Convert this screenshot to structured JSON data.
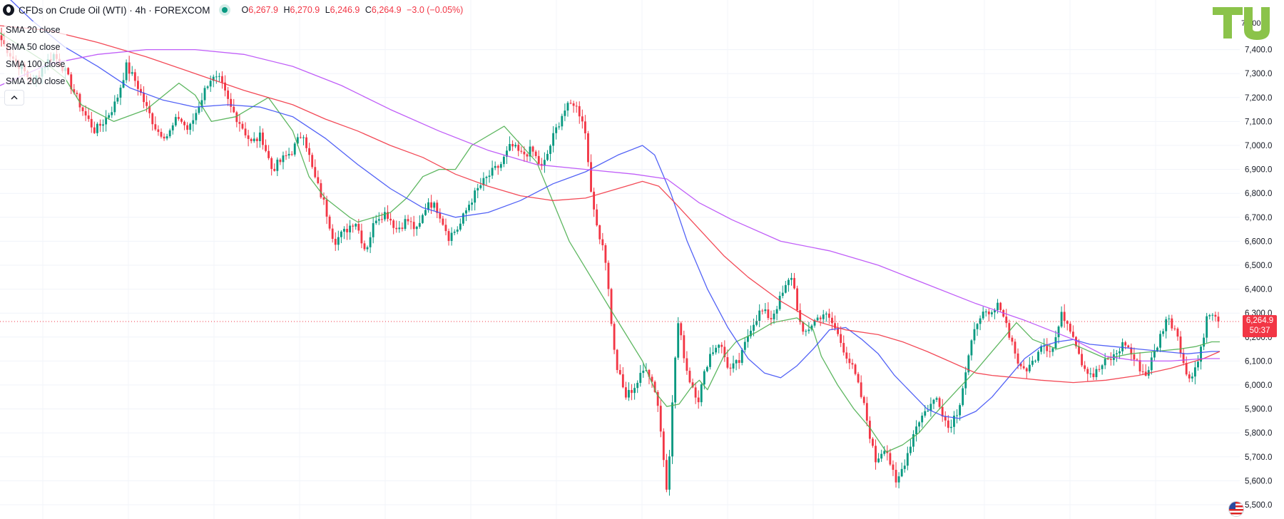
{
  "header": {
    "symbol_title": "CFDs on Crude Oil (WTI) · 4h · FOREXCOM",
    "ohlc": {
      "o_label": "O",
      "o": "6,267.9",
      "h_label": "H",
      "h": "6,270.9",
      "l_label": "L",
      "l": "6,246.9",
      "c_label": "C",
      "c": "6,264.9",
      "change": "−3.0 (−0.05%)"
    }
  },
  "indicators": [
    {
      "label": "SMA 20 close",
      "color": "#4caf50"
    },
    {
      "label": "SMA 50 close",
      "color": "#3f51f5"
    },
    {
      "label": "SMA 100 close",
      "color": "#f23645"
    },
    {
      "label": "SMA 200 close",
      "color": "#b94cf7"
    }
  ],
  "collapse_icon": "chevron-up-icon",
  "logo": {
    "text": "TU",
    "color": "#8bc34a"
  },
  "price_label": {
    "price": "6,264.9",
    "countdown": "50:37",
    "color": "#f23645"
  },
  "top_tick_partial": "7,500",
  "flag_icon": "us-flag-icon",
  "chart_data": {
    "type": "candlestick",
    "ylim": [
      5500,
      7500
    ],
    "yticks": [
      "7,400.0",
      "7,300.0",
      "7,200.0",
      "7,100.0",
      "7,000.0",
      "6,900.0",
      "6,800.0",
      "6,700.0",
      "6,600.0",
      "6,500.0",
      "6,400.0",
      "6,300.0",
      "6,200.0",
      "6,100.0",
      "6,000.0",
      "5,900.0",
      "5,800.0",
      "5,700.0",
      "5,600.0",
      "5,500.0"
    ],
    "ytick_values": [
      7400,
      7300,
      7200,
      7100,
      7000,
      6900,
      6800,
      6700,
      6600,
      6500,
      6400,
      6300,
      6200,
      6100,
      6000,
      5900,
      5800,
      5700,
      5600,
      5500
    ],
    "current_price": 6264.9,
    "colors": {
      "up": "#089981",
      "down": "#f23645"
    },
    "price_path": [
      7440,
      7370,
      7320,
      7260,
      7330,
      7380,
      7320,
      7220,
      7130,
      7060,
      7110,
      7180,
      7330,
      7260,
      7150,
      7060,
      7040,
      7120,
      7060,
      7170,
      7280,
      7270,
      7160,
      7090,
      7010,
      7040,
      6900,
      6940,
      6980,
      7060,
      6880,
      6760,
      6600,
      6640,
      6690,
      6560,
      6700,
      6720,
      6650,
      6690,
      6640,
      6770,
      6730,
      6620,
      6660,
      6760,
      6830,
      6880,
      6920,
      7000,
      6960,
      6980,
      6900,
      7030,
      7140,
      7180,
      7100,
      6700,
      6560,
      6100,
      5950,
      6000,
      6080,
      5960,
      5560,
      6270,
      6040,
      5940,
      6120,
      6180,
      6060,
      6100,
      6240,
      6310,
      6280,
      6370,
      6460,
      6200,
      6260,
      6300,
      6250,
      6150,
      6050,
      5900,
      5680,
      5750,
      5580,
      5700,
      5840,
      5900,
      5950,
      5820,
      5900,
      6120,
      6300,
      6280,
      6340,
      6200,
      6060,
      6080,
      6180,
      6140,
      6300,
      6220,
      6080,
      6040,
      6090,
      6120,
      6180,
      6100,
      6040,
      6150,
      6280,
      6230,
      6020,
      6090,
      6300,
      6265
    ],
    "sma_series": [
      {
        "name": "SMA 20 close",
        "color": "#4caf50",
        "x": [
          0,
          50,
          80,
          100,
          140,
          180,
          220,
          240,
          260,
          290,
          330,
          360,
          380,
          400,
          430,
          440,
          460,
          480,
          500,
          520,
          540,
          560,
          580,
          620,
          660,
          700,
          750,
          790,
          808,
          820,
          835,
          850,
          860,
          870,
          880,
          890,
          905,
          930,
          950,
          980,
          1000,
          1010,
          1030,
          1050,
          1070,
          1090,
          1110,
          1130,
          1150,
          1180,
          1200,
          1225,
          1250,
          1270,
          1300,
          1320,
          1340,
          1360,
          1390,
          1420,
          1450,
          1470,
          1490,
          1500
        ],
        "y": [
          7470,
          7360,
          7280,
          7170,
          7100,
          7150,
          7260,
          7210,
          7100,
          7120,
          7200,
          7060,
          6870,
          6780,
          6700,
          6680,
          6700,
          6720,
          6780,
          6870,
          6900,
          6900,
          7000,
          7080,
          6930,
          6600,
          6320,
          6100,
          5960,
          5910,
          5920,
          5990,
          6020,
          5980,
          6050,
          6120,
          6180,
          6220,
          6260,
          6280,
          6230,
          6120,
          6000,
          5900,
          5820,
          5720,
          5750,
          5800,
          5880,
          5990,
          6060,
          6160,
          6260,
          6190,
          6150,
          6170,
          6140,
          6110,
          6130,
          6140,
          6150,
          6160,
          6180,
          6180
        ]
      },
      {
        "name": "SMA 50 close",
        "color": "#3f51f5",
        "x": [
          0,
          40,
          80,
          120,
          160,
          200,
          240,
          280,
          320,
          360,
          400,
          440,
          480,
          520,
          560,
          600,
          640,
          680,
          720,
          760,
          790,
          805,
          825,
          845,
          870,
          895,
          920,
          940,
          960,
          980,
          1000,
          1020,
          1040,
          1060,
          1080,
          1100,
          1120,
          1140,
          1160,
          1180,
          1200,
          1220,
          1240,
          1260,
          1280,
          1300,
          1320,
          1340,
          1370,
          1400,
          1430,
          1460,
          1490,
          1500
        ],
        "y": [
          7650,
          7520,
          7410,
          7330,
          7240,
          7190,
          7160,
          7170,
          7160,
          7120,
          7030,
          6920,
          6820,
          6740,
          6700,
          6720,
          6770,
          6840,
          6890,
          6960,
          7000,
          6960,
          6800,
          6600,
          6400,
          6240,
          6110,
          6050,
          6030,
          6080,
          6150,
          6230,
          6240,
          6190,
          6130,
          6040,
          5970,
          5900,
          5870,
          5860,
          5890,
          5950,
          6030,
          6110,
          6160,
          6180,
          6190,
          6170,
          6160,
          6150,
          6140,
          6130,
          6140,
          6140
        ]
      },
      {
        "name": "SMA 100 close",
        "color": "#f23645",
        "x": [
          0,
          60,
          120,
          180,
          240,
          300,
          360,
          400,
          440,
          480,
          520,
          560,
          600,
          640,
          680,
          720,
          760,
          790,
          810,
          830,
          860,
          890,
          920,
          960,
          1000,
          1040,
          1080,
          1110,
          1140,
          1160,
          1180,
          1200,
          1220,
          1250,
          1280,
          1320,
          1360,
          1400,
          1440,
          1480,
          1500
        ],
        "y": [
          7500,
          7480,
          7430,
          7370,
          7300,
          7230,
          7170,
          7110,
          7060,
          7000,
          6950,
          6880,
          6830,
          6790,
          6770,
          6780,
          6820,
          6850,
          6830,
          6760,
          6650,
          6540,
          6450,
          6350,
          6270,
          6230,
          6210,
          6180,
          6140,
          6110,
          6080,
          6050,
          6040,
          6030,
          6020,
          6010,
          6020,
          6040,
          6070,
          6110,
          6140
        ]
      },
      {
        "name": "SMA 200 close",
        "color": "#b94cf7",
        "x": [
          0,
          60,
          120,
          180,
          240,
          300,
          360,
          420,
          480,
          540,
          600,
          660,
          720,
          780,
          820,
          860,
          900,
          960,
          1020,
          1080,
          1140,
          1200,
          1260,
          1320,
          1360,
          1400,
          1440,
          1480,
          1500
        ],
        "y": [
          7250,
          7340,
          7380,
          7400,
          7400,
          7380,
          7330,
          7250,
          7150,
          7060,
          6980,
          6920,
          6900,
          6880,
          6860,
          6760,
          6690,
          6600,
          6560,
          6500,
          6420,
          6340,
          6270,
          6190,
          6120,
          6100,
          6100,
          6110,
          6110
        ]
      }
    ]
  }
}
